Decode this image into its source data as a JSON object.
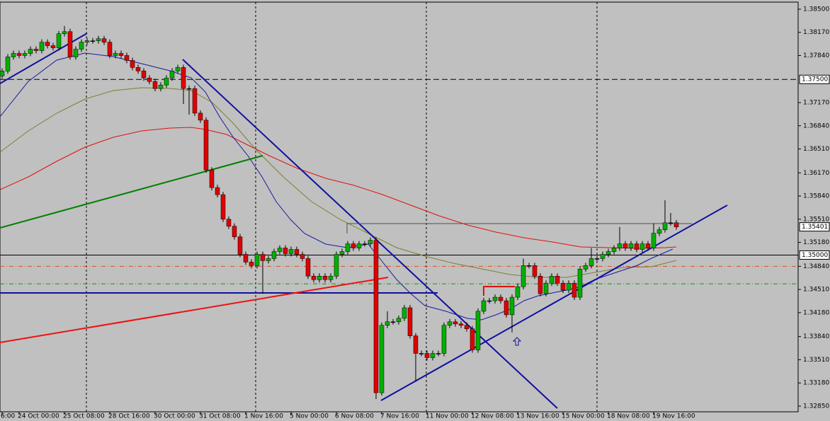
{
  "chart_data": {
    "type": "candlestick",
    "categories": [
      "6:00",
      null,
      null,
      "24 Oct 00:00",
      null,
      null,
      null,
      null,
      null,
      null,
      null,
      "25 Oct 08:00",
      null,
      null,
      null,
      null,
      null,
      null,
      null,
      "28 Oct 16:00",
      null,
      null,
      null,
      null,
      null,
      null,
      null,
      "30 Oct 00:00",
      null,
      null,
      null,
      null,
      null,
      null,
      null,
      "31 Oct 08:00",
      null,
      null,
      null,
      null,
      null,
      null,
      null,
      "1 Nov 16:00",
      null,
      null,
      null,
      null,
      null,
      null,
      null,
      "5 Nov 00:00",
      null,
      null,
      null,
      null,
      null,
      null,
      null,
      "6 Nov 08:00",
      null,
      null,
      null,
      null,
      null,
      null,
      null,
      "7 Nov 16:00",
      null,
      null,
      null,
      null,
      null,
      null,
      null,
      "11 Nov 00:00",
      null,
      null,
      null,
      null,
      null,
      null,
      null,
      "12 Nov 08:00",
      null,
      null,
      null,
      null,
      null,
      null,
      null,
      "13 Nov 16:00",
      null,
      null,
      null,
      null,
      null,
      null,
      null,
      "15 Nov 00:00",
      null,
      null,
      null,
      null,
      null,
      null,
      null,
      "18 Nov 08:00",
      null,
      null,
      null,
      null,
      null,
      null,
      null,
      "19 Nov 16:00",
      null,
      null,
      null,
      null
    ],
    "open": [
      1.3755,
      1.3762,
      1.3782,
      1.3787,
      1.3784,
      1.3787,
      1.3793,
      1.3791,
      1.3803,
      1.3798,
      1.3795,
      1.3815,
      1.3818,
      1.3782,
      1.3793,
      1.3803,
      1.3805,
      1.3805,
      1.3808,
      1.3803,
      1.3784,
      1.3787,
      1.3784,
      1.3777,
      1.3767,
      1.3762,
      1.3752,
      1.3747,
      1.3737,
      1.3742,
      1.3752,
      1.3762,
      1.3767,
      1.3737,
      1.3737,
      1.3702,
      1.3692,
      1.3621,
      1.3596,
      1.3586,
      1.3551,
      1.3541,
      1.3526,
      1.3501,
      1.349,
      1.3485,
      1.3501,
      1.3492,
      1.3495,
      1.3505,
      1.351,
      1.3502,
      1.3508,
      1.3501,
      1.3495,
      1.347,
      1.3465,
      1.347,
      1.3465,
      1.347,
      1.3501,
      1.3505,
      1.3516,
      1.351,
      1.3516,
      1.3516,
      1.3521,
      1.3304,
      1.34,
      1.3405,
      1.3405,
      1.341,
      1.3425,
      1.3385,
      1.336,
      1.336,
      1.3354,
      1.336,
      1.336,
      1.34,
      1.3405,
      1.3402,
      1.34,
      1.3395,
      1.3365,
      1.342,
      1.3435,
      1.3435,
      1.344,
      1.3435,
      1.3415,
      1.344,
      1.3455,
      1.3485,
      1.3485,
      1.347,
      1.3445,
      1.346,
      1.347,
      1.346,
      1.345,
      1.346,
      1.344,
      1.348,
      1.3485,
      1.3495,
      1.3495,
      1.3501,
      1.3505,
      1.351,
      1.3516,
      1.351,
      1.3516,
      1.3508,
      1.3516,
      1.351,
      1.3531,
      1.3536,
      1.3546,
      1.3546
    ],
    "high": [
      1.3766,
      1.3786,
      1.3791,
      1.3791,
      1.3791,
      1.3797,
      1.3797,
      1.3807,
      1.3807,
      1.3802,
      1.3819,
      1.3826,
      1.3822,
      1.3797,
      1.3807,
      1.3809,
      1.3809,
      1.3812,
      1.3812,
      1.3807,
      1.3791,
      1.3791,
      1.3788,
      1.3781,
      1.3771,
      1.3766,
      1.3756,
      1.3751,
      1.3746,
      1.3756,
      1.3766,
      1.3771,
      1.3771,
      1.3741,
      1.3741,
      1.3706,
      1.3696,
      1.3625,
      1.36,
      1.359,
      1.3555,
      1.3545,
      1.353,
      1.3505,
      1.3494,
      1.3505,
      1.3505,
      1.3499,
      1.3509,
      1.3514,
      1.3514,
      1.3512,
      1.3512,
      1.3505,
      1.3499,
      1.3474,
      1.3474,
      1.3474,
      1.3474,
      1.3505,
      1.3509,
      1.352,
      1.352,
      1.352,
      1.352,
      1.3525,
      1.3525,
      1.3404,
      1.342,
      1.3409,
      1.3414,
      1.3429,
      1.3429,
      1.3389,
      1.3364,
      1.3364,
      1.3364,
      1.3364,
      1.3404,
      1.3409,
      1.3409,
      1.3406,
      1.3404,
      1.3399,
      1.3424,
      1.3439,
      1.3439,
      1.3444,
      1.3444,
      1.3439,
      1.3444,
      1.3459,
      1.3495,
      1.3489,
      1.3489,
      1.3474,
      1.3464,
      1.3474,
      1.3474,
      1.3464,
      1.3464,
      1.3464,
      1.3484,
      1.3489,
      1.351,
      1.3499,
      1.3505,
      1.3509,
      1.3514,
      1.354,
      1.352,
      1.352,
      1.352,
      1.352,
      1.352,
      1.3545,
      1.354,
      1.3578,
      1.356,
      1.355
    ],
    "low": [
      1.3751,
      1.3758,
      1.3778,
      1.378,
      1.378,
      1.3783,
      1.3787,
      1.3787,
      1.3794,
      1.3791,
      1.3791,
      1.3811,
      1.3778,
      1.3778,
      1.3789,
      1.3799,
      1.3801,
      1.3801,
      1.3799,
      1.378,
      1.378,
      1.378,
      1.3773,
      1.3763,
      1.3758,
      1.3748,
      1.3743,
      1.3733,
      1.3733,
      1.3738,
      1.3748,
      1.3758,
      1.3715,
      1.37,
      1.3698,
      1.3688,
      1.3617,
      1.3592,
      1.3582,
      1.3547,
      1.3537,
      1.3522,
      1.3497,
      1.3486,
      1.3481,
      1.3481,
      1.3445,
      1.3488,
      1.3491,
      1.3501,
      1.3498,
      1.3498,
      1.3497,
      1.3491,
      1.3466,
      1.3461,
      1.3461,
      1.3461,
      1.3461,
      1.3466,
      1.3497,
      1.3501,
      1.3506,
      1.3506,
      1.3512,
      1.3512,
      1.3295,
      1.33,
      1.3396,
      1.3401,
      1.3401,
      1.3406,
      1.3381,
      1.332,
      1.3356,
      1.335,
      1.335,
      1.3356,
      1.3356,
      1.3396,
      1.3398,
      1.3396,
      1.3391,
      1.3361,
      1.3361,
      1.3416,
      1.3431,
      1.3431,
      1.3431,
      1.3411,
      1.339,
      1.3436,
      1.3451,
      1.3481,
      1.3466,
      1.3441,
      1.3441,
      1.3456,
      1.3456,
      1.3446,
      1.3446,
      1.3436,
      1.3436,
      1.3476,
      1.3481,
      1.3491,
      1.3491,
      1.3497,
      1.3501,
      1.3506,
      1.3506,
      1.3506,
      1.3504,
      1.3504,
      1.3506,
      1.3506,
      1.3527,
      1.3532,
      1.3542,
      1.3536
    ],
    "close": [
      1.3762,
      1.3782,
      1.3787,
      1.3784,
      1.3787,
      1.3793,
      1.3791,
      1.3803,
      1.3798,
      1.3795,
      1.3815,
      1.3818,
      1.3782,
      1.3793,
      1.3803,
      1.3805,
      1.3805,
      1.3808,
      1.3803,
      1.3784,
      1.3787,
      1.3784,
      1.3777,
      1.3767,
      1.3762,
      1.3752,
      1.3747,
      1.3737,
      1.3742,
      1.3752,
      1.3762,
      1.3767,
      1.3737,
      1.3737,
      1.3702,
      1.3692,
      1.3621,
      1.3596,
      1.3586,
      1.3551,
      1.3541,
      1.3526,
      1.3501,
      1.349,
      1.3485,
      1.3501,
      1.3492,
      1.3495,
      1.3505,
      1.351,
      1.3502,
      1.3508,
      1.3501,
      1.3495,
      1.347,
      1.3465,
      1.347,
      1.3465,
      1.347,
      1.3501,
      1.3505,
      1.3516,
      1.351,
      1.3516,
      1.3516,
      1.3521,
      1.3304,
      1.34,
      1.3405,
      1.3405,
      1.341,
      1.3425,
      1.3385,
      1.336,
      1.336,
      1.3354,
      1.336,
      1.336,
      1.34,
      1.3405,
      1.3402,
      1.34,
      1.3395,
      1.3365,
      1.342,
      1.3435,
      1.3435,
      1.344,
      1.3435,
      1.3415,
      1.344,
      1.3455,
      1.3485,
      1.3485,
      1.347,
      1.3445,
      1.346,
      1.347,
      1.346,
      1.345,
      1.346,
      1.344,
      1.348,
      1.3485,
      1.3495,
      1.3495,
      1.3501,
      1.3505,
      1.351,
      1.3516,
      1.351,
      1.3516,
      1.3508,
      1.3516,
      1.351,
      1.3531,
      1.3536,
      1.3546,
      1.3546,
      1.354
    ],
    "up_color": "#00b000",
    "down_color": "#e00000",
    "ylim": [
      1.32769,
      1.386
    ],
    "yticks": [
      {
        "value": 1.385,
        "label": "1.38500"
      },
      {
        "value": 1.3817,
        "label": "1.38170"
      },
      {
        "value": 1.3784,
        "label": "1.37840"
      },
      {
        "value": 1.3717,
        "label": "1.37170"
      },
      {
        "value": 1.3684,
        "label": "1.36840"
      },
      {
        "value": 1.3651,
        "label": "1.36510"
      },
      {
        "value": 1.3617,
        "label": "1.36170"
      },
      {
        "value": 1.3584,
        "label": "1.35840"
      },
      {
        "value": 1.3551,
        "label": "1.35510"
      },
      {
        "value": 1.3518,
        "label": "1.35180"
      },
      {
        "value": 1.3484,
        "label": "1.34840"
      },
      {
        "value": 1.3451,
        "label": "1.34510"
      },
      {
        "value": 1.3418,
        "label": "1.34180"
      },
      {
        "value": 1.3384,
        "label": "1.33840"
      },
      {
        "value": 1.3351,
        "label": "1.33510"
      },
      {
        "value": 1.3318,
        "label": "1.33180"
      },
      {
        "value": 1.3285,
        "label": "1.32850"
      }
    ],
    "hlines": [
      {
        "value": 1.375,
        "label": "1.37500",
        "color": "#000000",
        "style": "dashed"
      },
      {
        "value": 1.35,
        "label": "1.35000",
        "color": "#000000",
        "style": "solid"
      },
      {
        "value": 1.3484,
        "color": "#e05020",
        "style": "dashdot"
      },
      {
        "value": 1.3459,
        "color": "#00a000",
        "style": "dashdot"
      }
    ],
    "current_price": 1.35401
  }
}
